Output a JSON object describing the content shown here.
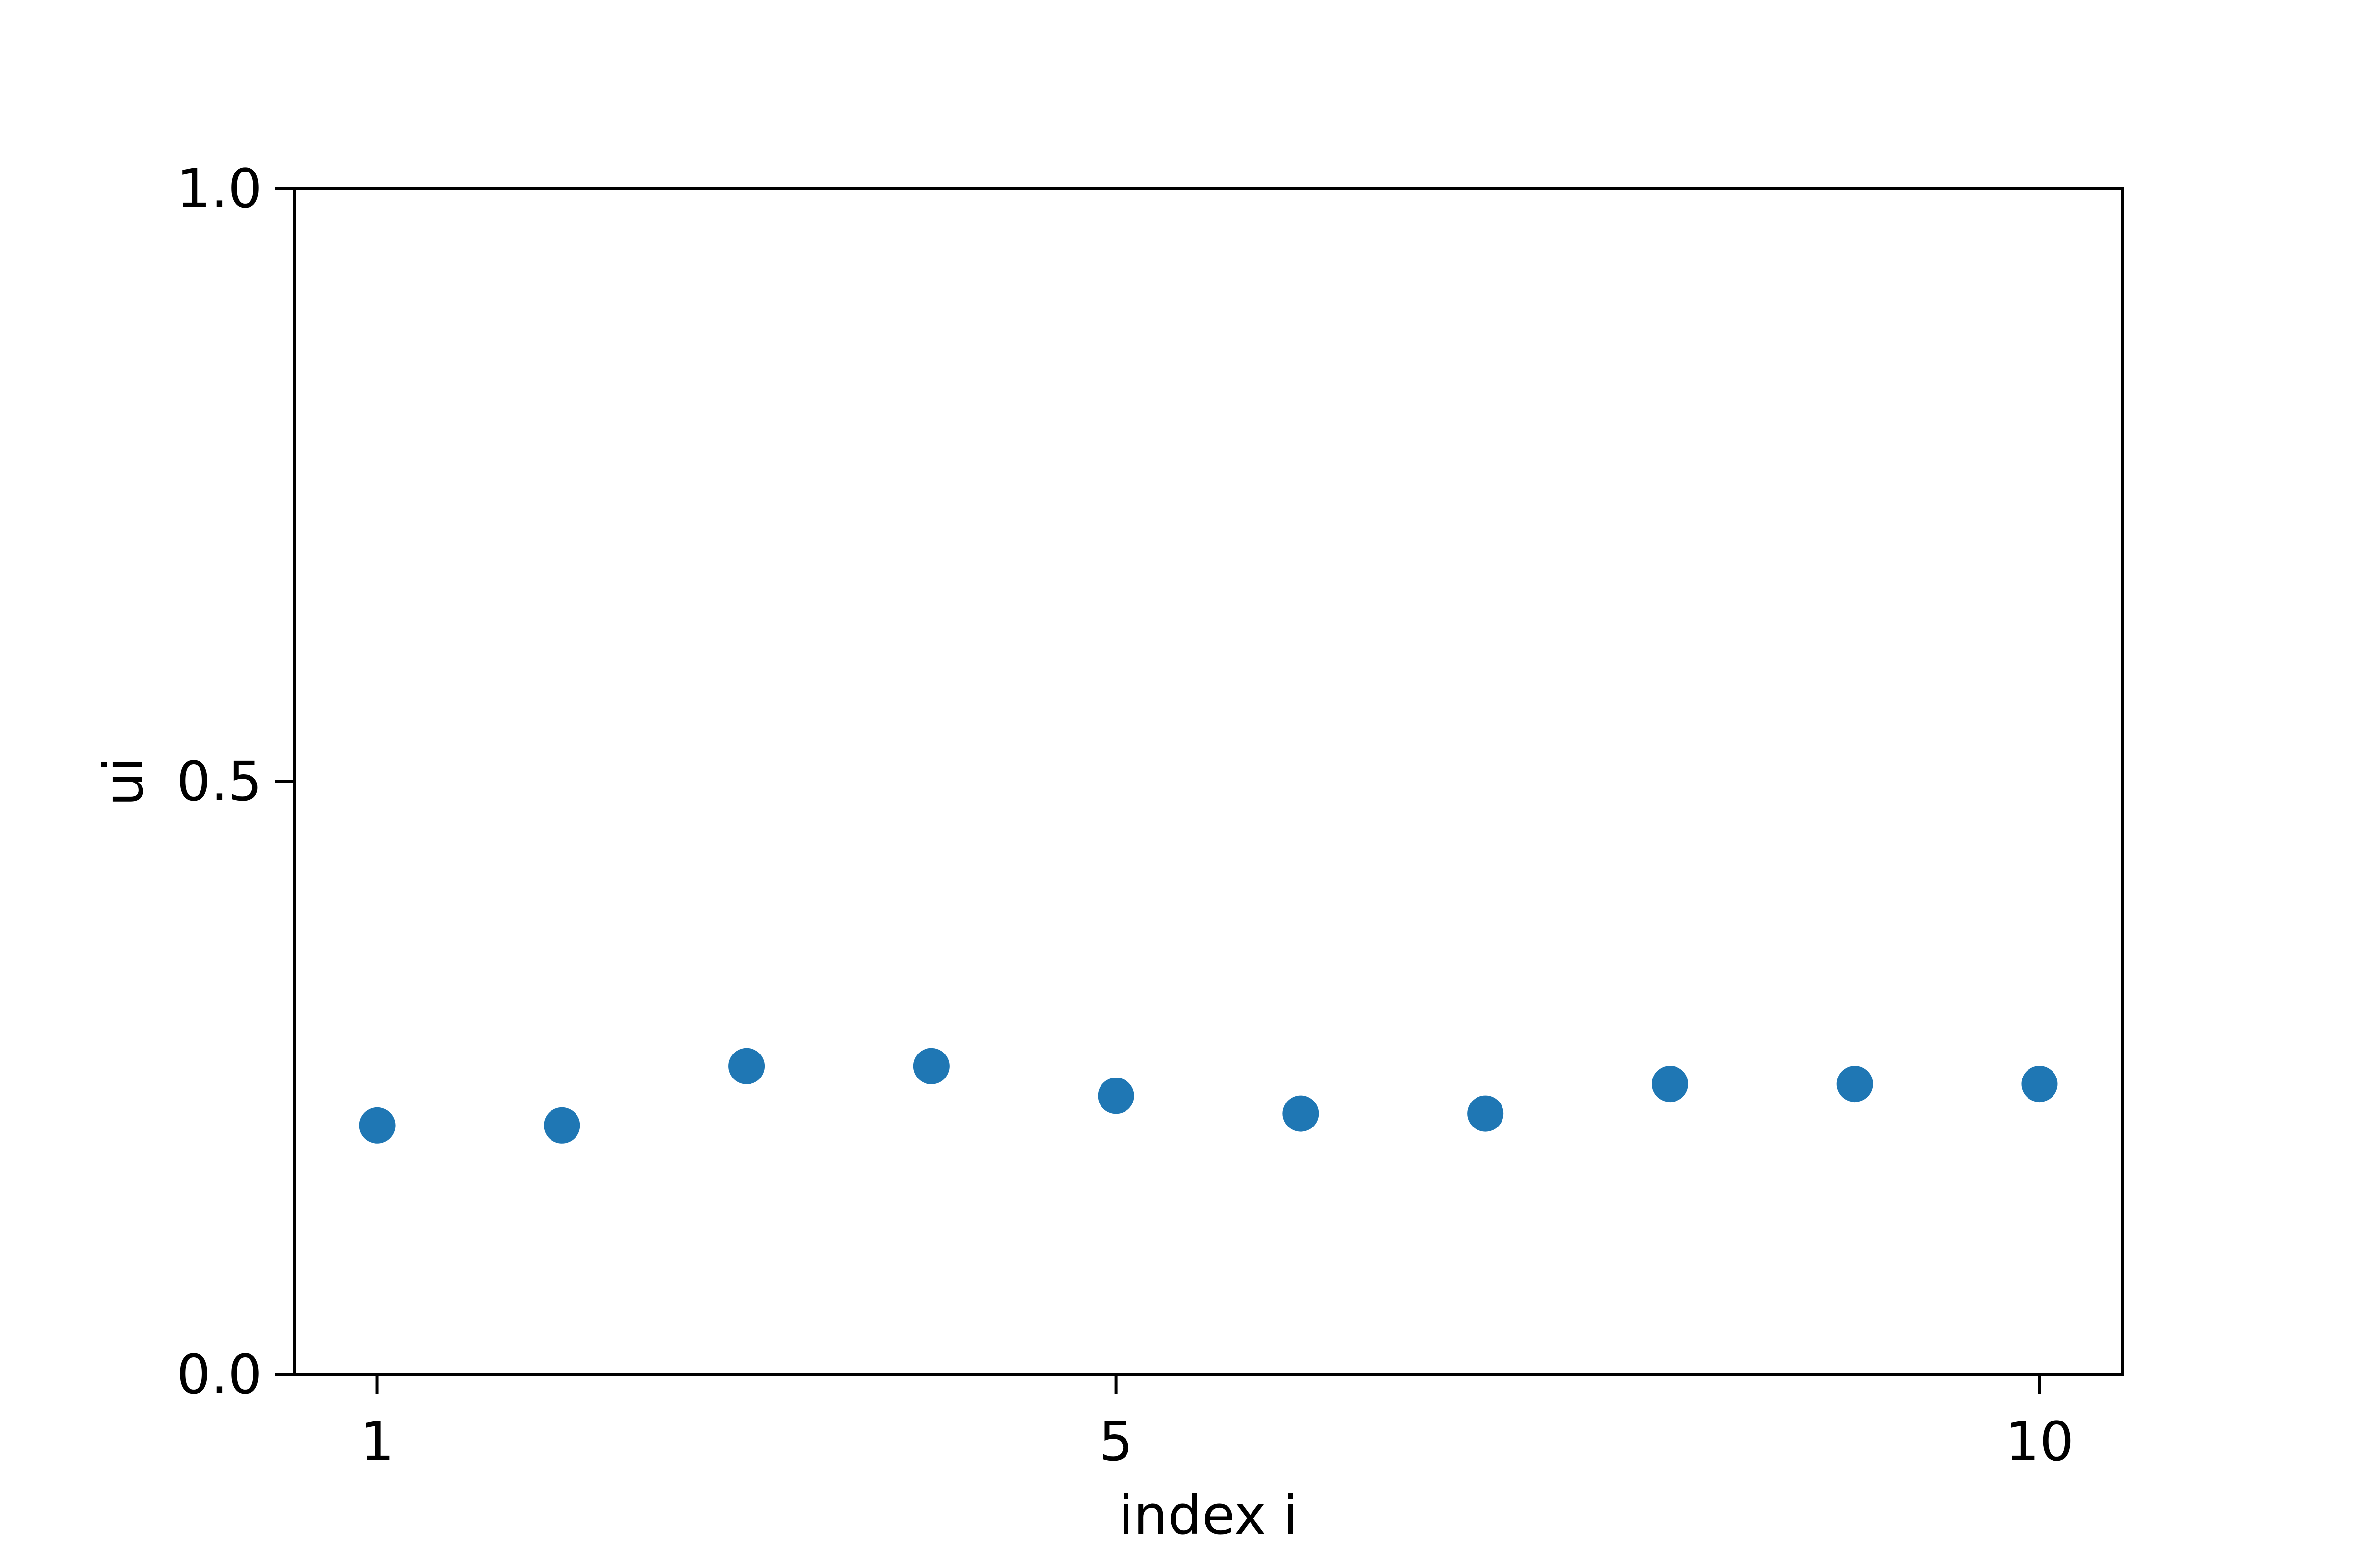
{
  "chart_data": {
    "type": "scatter",
    "title": "",
    "xlabel": "index i",
    "ylabel": "ui",
    "xlim": [
      0.55,
      10.45
    ],
    "ylim": [
      0.0,
      1.0
    ],
    "xticks": [
      1,
      5,
      10
    ],
    "xtick_labels": [
      "1",
      "5",
      "10"
    ],
    "yticks": [
      0.0,
      0.5,
      1.0
    ],
    "ytick_labels": [
      "0.0",
      "0.5",
      "1.0"
    ],
    "grid": false,
    "series": [
      {
        "x": [
          1,
          2,
          3,
          4,
          5,
          6,
          7,
          8,
          9,
          10
        ],
        "y": [
          0.21,
          0.21,
          0.26,
          0.26,
          0.235,
          0.22,
          0.22,
          0.245,
          0.245,
          0.245
        ],
        "color": "#1f77b4"
      }
    ]
  }
}
